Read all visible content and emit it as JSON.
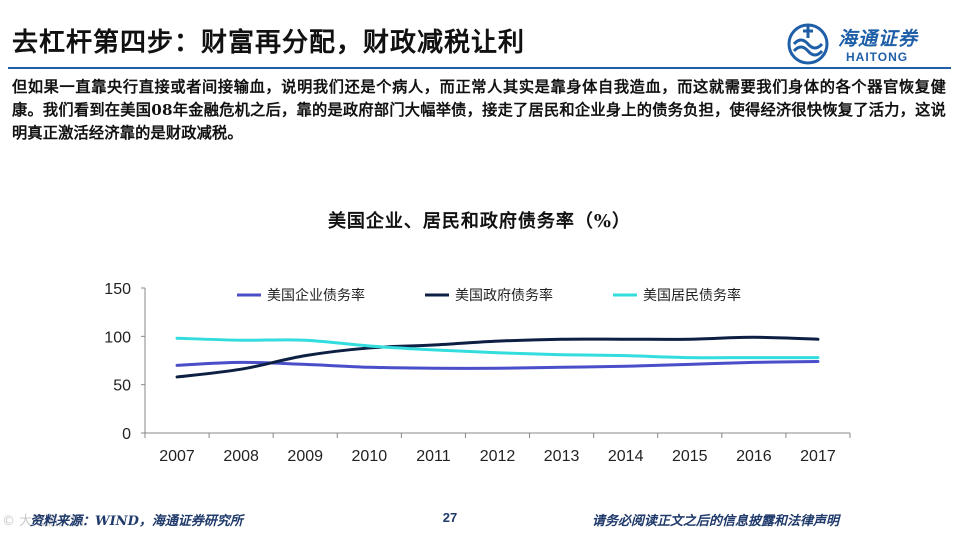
{
  "header": {
    "title": "去杠杆第四步：财富再分配，财政减税让利",
    "logo_cn": "海通证券",
    "logo_en": "HAITONG"
  },
  "body": {
    "paragraph": "但如果一直靠央行直接或者间接输血，说明我们还是个病人，而正常人其实是靠身体自我造血，而这就需要我们身体的各个器官恢复健康。我们看到在美国08年金融危机之后，靠的是政府部门大幅举债，接走了居民和企业身上的债务负担，使得经济很快恢复了活力，这说明真正激活经济靠的是财政减税。"
  },
  "chart_title": "美国企业、居民和政府债务率（%）",
  "chart_data": {
    "type": "line",
    "title": "美国企业、居民和政府债务率（%）",
    "x": [
      "2007",
      "2008",
      "2009",
      "2010",
      "2011",
      "2012",
      "2013",
      "2014",
      "2015",
      "2016",
      "2017"
    ],
    "ylim": [
      0,
      150
    ],
    "yticks": [
      0,
      50,
      100,
      150
    ],
    "grid": false,
    "legend": "top",
    "series": [
      {
        "name": "美国企业债务率",
        "color": "#4a4ec8",
        "values": [
          70,
          73,
          71,
          68,
          67,
          67,
          68,
          69,
          71,
          73,
          74
        ]
      },
      {
        "name": "美国政府债务率",
        "color": "#0e1f44",
        "values": [
          58,
          66,
          80,
          88,
          91,
          95,
          97,
          97,
          97,
          99,
          97
        ]
      },
      {
        "name": "美国居民债务率",
        "color": "#33dddd",
        "values": [
          98,
          96,
          96,
          90,
          86,
          83,
          81,
          80,
          78,
          78,
          78
        ]
      }
    ]
  },
  "footer": {
    "source": "资料来源：WIND，海通证券研究所",
    "page": "27",
    "disclaimer": "请务必阅读正文之后的信息披露和法律声明",
    "watermark": "© 大数据文摘"
  },
  "colors": {
    "brand": "#1f5fa8",
    "footer_text": "#1f3a6b"
  }
}
